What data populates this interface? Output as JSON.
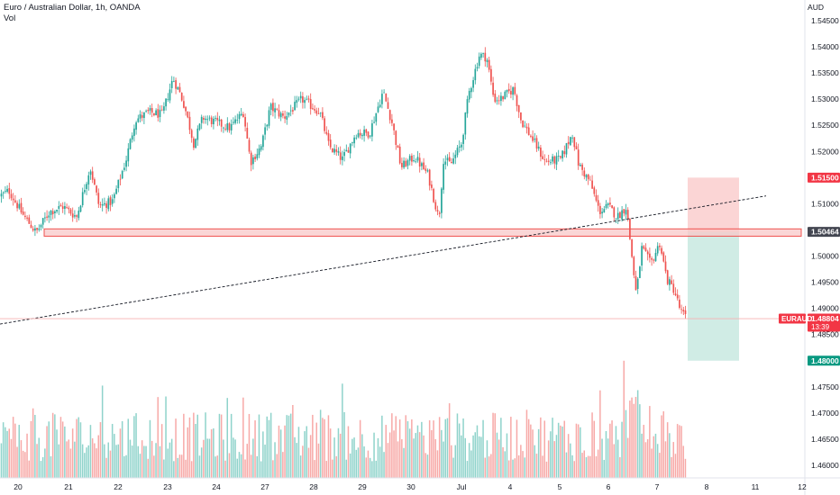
{
  "header": {
    "title": "Euro / Australian Dollar, 1h, OANDA",
    "volume_label": "Vol",
    "currency": "AUD"
  },
  "colors": {
    "up": "#26a69a",
    "down": "#ef5350",
    "up_volume": "#8fd3cb",
    "down_volume": "#f7a9a7",
    "zone": "#f8c8c8",
    "zone_border": "#ef5350",
    "target_zone": "#cdebe4",
    "stop_zone": "#fbd0d0",
    "trendline": "#131722",
    "price_line": "#f7b1b1"
  },
  "chart_data": {
    "type": "candlestick",
    "symbol": "EURAUD",
    "timeframe": "1h",
    "y_axis": {
      "min": 1.458,
      "max": 1.548,
      "ticks": [
        "1.46000",
        "1.46500",
        "1.47000",
        "1.47500",
        "1.48000",
        "1.48500",
        "1.49000",
        "1.49500",
        "1.50000",
        "1.50500",
        "1.51000",
        "1.51500",
        "1.52000",
        "1.52500",
        "1.53000",
        "1.53500",
        "1.54000",
        "1.54500"
      ]
    },
    "x_axis": {
      "labels": [
        "20",
        "21",
        "22",
        "23",
        "24",
        "27",
        "28",
        "29",
        "30",
        "Jul",
        "4",
        "5",
        "6",
        "7",
        "8",
        "11",
        "12"
      ]
    },
    "price_path": [
      [
        0,
        1.5115
      ],
      [
        10,
        1.5125
      ],
      [
        25,
        1.508
      ],
      [
        40,
        1.5045
      ],
      [
        55,
        1.5085
      ],
      [
        70,
        1.5095
      ],
      [
        85,
        1.5075
      ],
      [
        100,
        1.517
      ],
      [
        110,
        1.5095
      ],
      [
        125,
        1.5105
      ],
      [
        140,
        1.5185
      ],
      [
        150,
        1.526
      ],
      [
        165,
        1.5275
      ],
      [
        180,
        1.527
      ],
      [
        192,
        1.534
      ],
      [
        200,
        1.531
      ],
      [
        205,
        1.5285
      ],
      [
        215,
        1.5215
      ],
      [
        225,
        1.5265
      ],
      [
        240,
        1.5255
      ],
      [
        255,
        1.5245
      ],
      [
        270,
        1.5275
      ],
      [
        278,
        1.518
      ],
      [
        290,
        1.521
      ],
      [
        300,
        1.5285
      ],
      [
        315,
        1.5265
      ],
      [
        335,
        1.53
      ],
      [
        355,
        1.5275
      ],
      [
        365,
        1.521
      ],
      [
        380,
        1.5185
      ],
      [
        395,
        1.5235
      ],
      [
        410,
        1.5235
      ],
      [
        425,
        1.5315
      ],
      [
        435,
        1.5255
      ],
      [
        445,
        1.517
      ],
      [
        460,
        1.519
      ],
      [
        475,
        1.5155
      ],
      [
        487,
        1.507
      ],
      [
        492,
        1.5185
      ],
      [
        500,
        1.5175
      ],
      [
        512,
        1.5215
      ],
      [
        520,
        1.531
      ],
      [
        532,
        1.5385
      ],
      [
        540,
        1.538
      ],
      [
        548,
        1.53
      ],
      [
        555,
        1.53
      ],
      [
        570,
        1.532
      ],
      [
        578,
        1.526
      ],
      [
        592,
        1.522
      ],
      [
        605,
        1.518
      ],
      [
        622,
        1.5185
      ],
      [
        635,
        1.5235
      ],
      [
        642,
        1.5175
      ],
      [
        655,
        1.514
      ],
      [
        665,
        1.5085
      ],
      [
        675,
        1.5095
      ],
      [
        685,
        1.5075
      ],
      [
        695,
        1.5095
      ],
      [
        702,
        1.4985
      ],
      [
        706,
        1.4925
      ],
      [
        712,
        1.5015
      ],
      [
        722,
        1.4985
      ],
      [
        732,
        1.5025
      ],
      [
        740,
        1.4955
      ],
      [
        748,
        1.4935
      ],
      [
        755,
        1.4895
      ],
      [
        762,
        1.488
      ]
    ],
    "annotations": {
      "support_zone": {
        "from": 1.5038,
        "to": 1.5052,
        "x_start_label": "20",
        "x_end_label": "12"
      },
      "trendline": {
        "start_price": 1.487,
        "end_price": 1.5115,
        "style": "dashed"
      },
      "position_tool": {
        "entry": 1.50464,
        "stop": 1.515,
        "target": 1.48
      },
      "current_price_line": 1.48804
    },
    "axis_labels": [
      {
        "text": "1.51500",
        "price": 1.515,
        "style": "red"
      },
      {
        "text": "1.50464",
        "price": 1.50464,
        "style": "dark"
      },
      {
        "text": "1.48804",
        "price": 1.48804,
        "style": "red",
        "tag": "EURAUD",
        "countdown": "13:39"
      },
      {
        "text": "1.48000",
        "price": 1.48,
        "style": "green"
      }
    ]
  }
}
